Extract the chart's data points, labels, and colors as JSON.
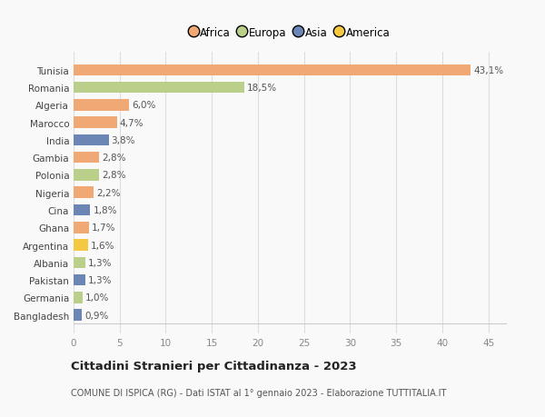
{
  "countries": [
    "Tunisia",
    "Romania",
    "Algeria",
    "Marocco",
    "India",
    "Gambia",
    "Polonia",
    "Nigeria",
    "Cina",
    "Ghana",
    "Argentina",
    "Albania",
    "Pakistan",
    "Germania",
    "Bangladesh"
  ],
  "values": [
    43.1,
    18.5,
    6.0,
    4.7,
    3.8,
    2.8,
    2.8,
    2.2,
    1.8,
    1.7,
    1.6,
    1.3,
    1.3,
    1.0,
    0.9
  ],
  "labels": [
    "43,1%",
    "18,5%",
    "6,0%",
    "4,7%",
    "3,8%",
    "2,8%",
    "2,8%",
    "2,2%",
    "1,8%",
    "1,7%",
    "1,6%",
    "1,3%",
    "1,3%",
    "1,0%",
    "0,9%"
  ],
  "colors": [
    "#F0A875",
    "#BACF8A",
    "#F0A875",
    "#F0A875",
    "#6B85B5",
    "#F0A875",
    "#BACF8A",
    "#F0A875",
    "#6B85B5",
    "#F0A875",
    "#F5C842",
    "#BACF8A",
    "#6B85B5",
    "#BACF8A",
    "#6B85B5"
  ],
  "legend": [
    {
      "label": "Africa",
      "color": "#F0A875"
    },
    {
      "label": "Europa",
      "color": "#BACF8A"
    },
    {
      "label": "Asia",
      "color": "#6B85B5"
    },
    {
      "label": "America",
      "color": "#F5C842"
    }
  ],
  "xlim": [
    0,
    47
  ],
  "xticks": [
    0,
    5,
    10,
    15,
    20,
    25,
    30,
    35,
    40,
    45
  ],
  "title": "Cittadini Stranieri per Cittadinanza - 2023",
  "subtitle": "COMUNE DI ISPICA (RG) - Dati ISTAT al 1° gennaio 2023 - Elaborazione TUTTITALIA.IT",
  "background_color": "#f9f9f9",
  "bar_height": 0.65,
  "label_fontsize": 7.5,
  "tick_fontsize": 7.5,
  "legend_fontsize": 8.5,
  "title_fontsize": 9.5,
  "subtitle_fontsize": 7.0
}
